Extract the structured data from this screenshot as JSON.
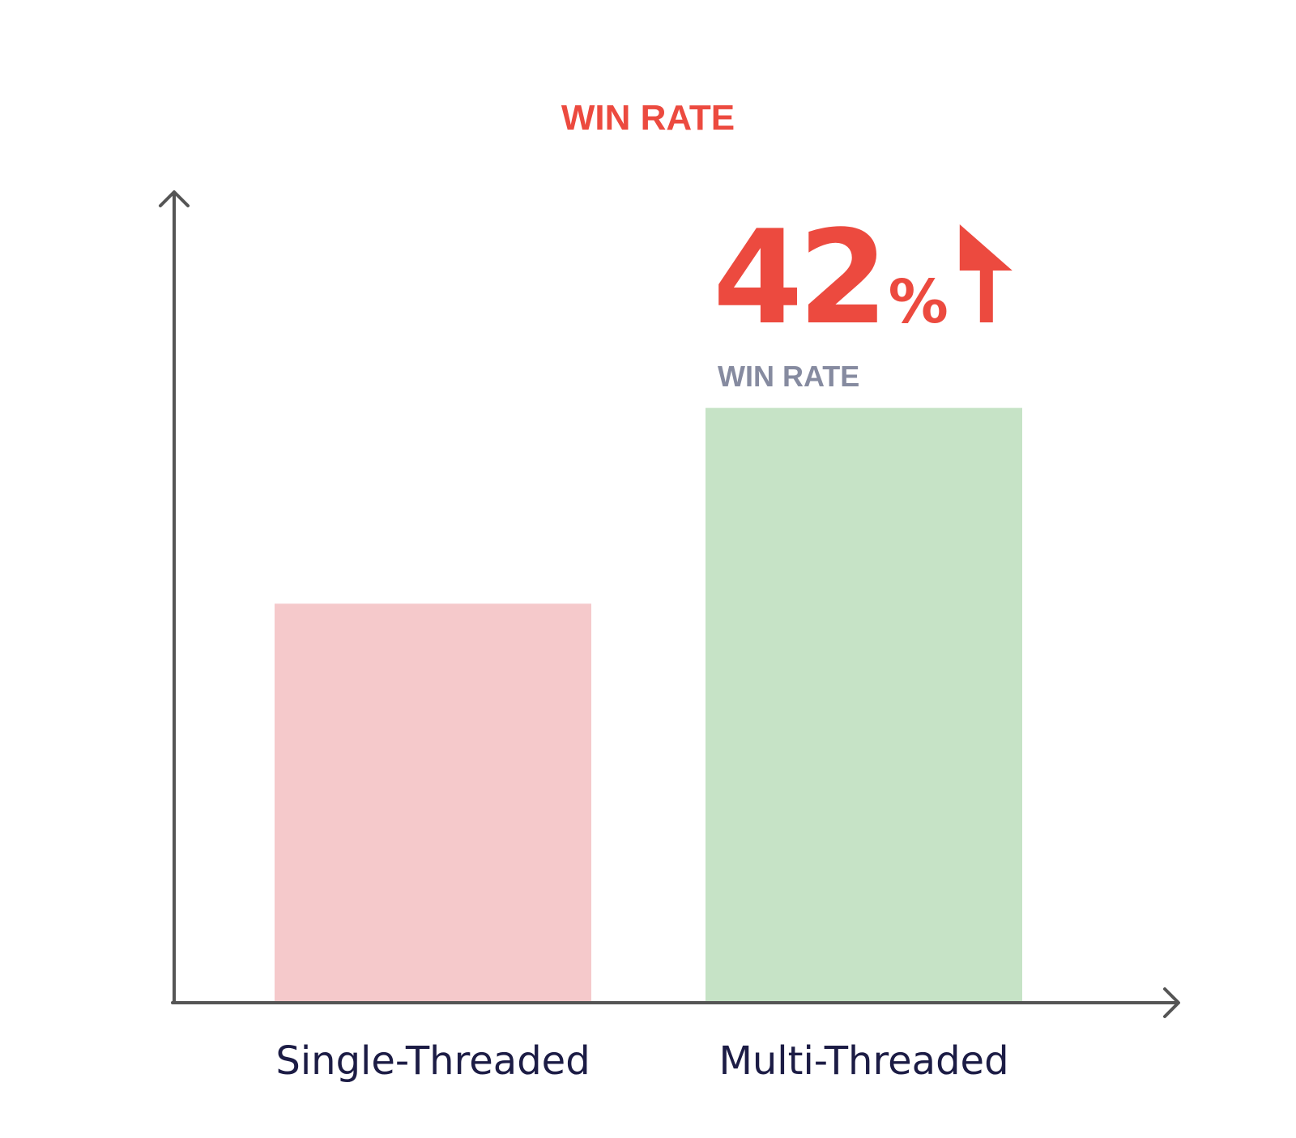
{
  "chart_data": {
    "type": "bar",
    "title": "WIN RATE",
    "xlabel": "",
    "ylabel": "",
    "categories": [
      "Single-Threaded",
      "Multi-Threaded"
    ],
    "values": [
      0.67,
      1.0
    ],
    "ylim": [
      0,
      1.36
    ],
    "grid": false,
    "legend": "none",
    "bar_colors": [
      "#f5c9cb",
      "#c6e3c6"
    ],
    "callout": {
      "value": "42",
      "unit": "%",
      "label": "WIN RATE",
      "direction": "up",
      "icon": "arrow-up-icon"
    }
  },
  "colors": {
    "accent": "#ec4a3f",
    "axis": "#555555",
    "category_text": "#1c1c45",
    "muted_text": "#868ba0"
  }
}
